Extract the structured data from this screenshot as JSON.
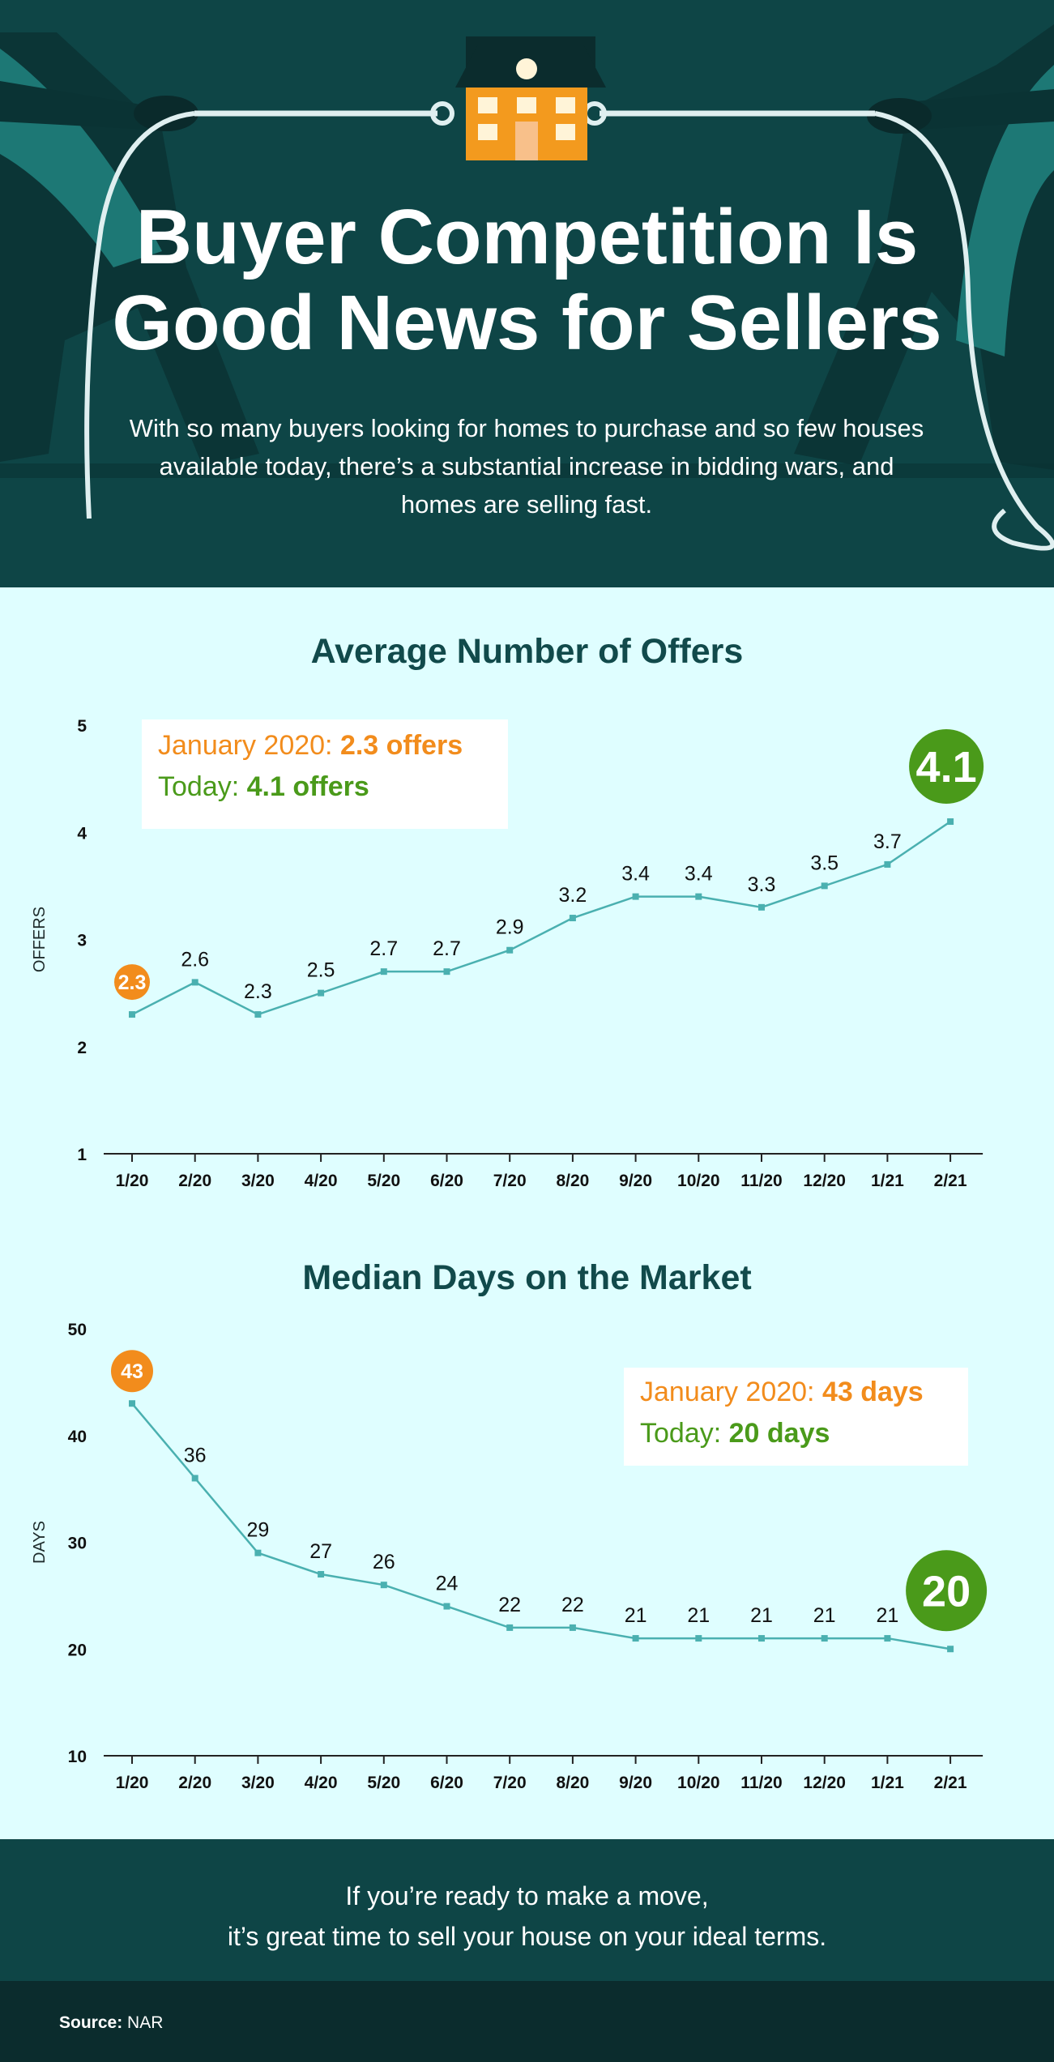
{
  "header": {
    "title_line1": "Buyer Competition Is",
    "title_line2": "Good News for Sellers",
    "subtitle": "With so many buyers looking for homes to purchase and so few houses available today, there’s a substantial increase in bidding wars, and homes are selling fast."
  },
  "colors": {
    "header_bg": "#0e4546",
    "page_bg": "#dffeff",
    "line": "#4ab0b0",
    "orange": "#f28c1c",
    "green": "#4a9a1a"
  },
  "chart_data": [
    {
      "type": "line",
      "title": "Average Number of Offers",
      "xlabel": "",
      "ylabel": "OFFERS",
      "ylim": [
        1,
        5
      ],
      "yticks": [
        1,
        2,
        3,
        4,
        5
      ],
      "categories": [
        "1/20",
        "2/20",
        "3/20",
        "4/20",
        "5/20",
        "6/20",
        "7/20",
        "8/20",
        "9/20",
        "10/20",
        "11/20",
        "12/20",
        "1/21",
        "2/21"
      ],
      "values": [
        2.3,
        2.6,
        2.3,
        2.5,
        2.7,
        2.7,
        2.9,
        3.2,
        3.4,
        3.4,
        3.3,
        3.5,
        3.7,
        4.1
      ],
      "data_labels": [
        "2.3",
        "2.6",
        "2.3",
        "2.5",
        "2.7",
        "2.7",
        "2.9",
        "3.2",
        "3.4",
        "3.4",
        "3.3",
        "3.5",
        "3.7",
        "4.1"
      ],
      "first_badge": "2.3",
      "last_badge": "4.1",
      "callout": {
        "line1_prefix": "January 2020: ",
        "line1_value": "2.3 offers",
        "line2_prefix": "Today: ",
        "line2_value": "4.1 offers"
      },
      "grid": false
    },
    {
      "type": "line",
      "title": "Median Days on the Market",
      "xlabel": "",
      "ylabel": "DAYS",
      "ylim": [
        10,
        50
      ],
      "yticks": [
        10,
        20,
        30,
        40,
        50
      ],
      "categories": [
        "1/20",
        "2/20",
        "3/20",
        "4/20",
        "5/20",
        "6/20",
        "7/20",
        "8/20",
        "9/20",
        "10/20",
        "11/20",
        "12/20",
        "1/21",
        "2/21"
      ],
      "values": [
        43,
        36,
        29,
        27,
        26,
        24,
        22,
        22,
        21,
        21,
        21,
        21,
        21,
        20
      ],
      "data_labels": [
        "43",
        "36",
        "29",
        "27",
        "26",
        "24",
        "22",
        "22",
        "21",
        "21",
        "21",
        "21",
        "21",
        "20"
      ],
      "first_badge": "43",
      "last_badge": "20",
      "callout": {
        "line1_prefix": "January 2020: ",
        "line1_value": "43 days",
        "line2_prefix": "Today: ",
        "line2_value": "20 days"
      },
      "grid": false
    }
  ],
  "footer": {
    "line1": "If you’re ready to make a move,",
    "line2": "it’s great time to sell your house on your ideal terms."
  },
  "source": {
    "label": "Source:",
    "value": " NAR"
  }
}
